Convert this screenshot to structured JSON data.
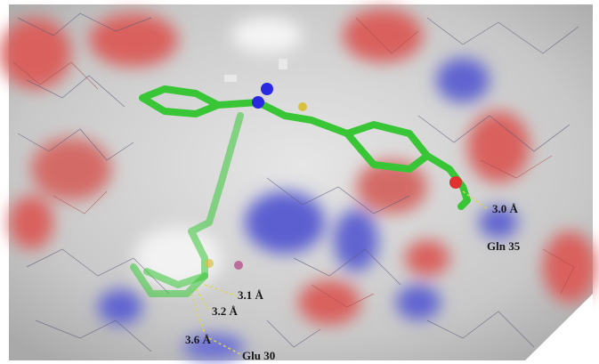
{
  "labels": [
    "3.0 Å",
    "Gln 35",
    "3.1 Å",
    "3.2 Å",
    "3.6 Å",
    "Glu 30"
  ]
}
